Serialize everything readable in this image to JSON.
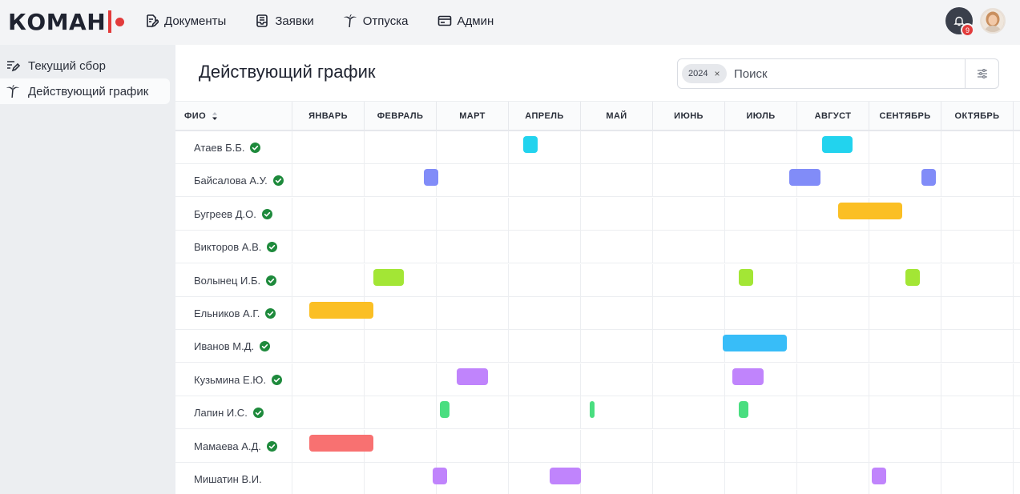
{
  "topbar": {
    "logo_text": "КОМАН",
    "brand_color": "#e23b3b",
    "nav": [
      {
        "label": "Документы",
        "icon": "document-edit-icon"
      },
      {
        "label": "Заявки",
        "icon": "inbox-icon"
      },
      {
        "label": "Отпуска",
        "icon": "palm-tree-icon"
      },
      {
        "label": "Админ",
        "icon": "admin-card-icon"
      }
    ],
    "notifications": {
      "icon": "bell-icon",
      "count": "9"
    },
    "avatar": "user-avatar"
  },
  "sidebar": {
    "items": [
      {
        "label": "Текущий сбор",
        "icon": "edit-list-icon",
        "active": false
      },
      {
        "label": "Действующий график",
        "icon": "palm-tree-icon",
        "active": true
      }
    ]
  },
  "main": {
    "title": "Действующий график",
    "search": {
      "chip": "2024",
      "placeholder": "Поиск",
      "value": "",
      "filter_icon": "sliders-icon"
    }
  },
  "table": {
    "name_header": "ФИО",
    "months": [
      "ЯНВАРЬ",
      "ФЕВРАЛЬ",
      "МАРТ",
      "АПРЕЛЬ",
      "МАЙ",
      "ИЮНЬ",
      "ИЮЛЬ",
      "АВГУСТ",
      "СЕНТЯБРЬ",
      "ОКТЯБРЬ"
    ],
    "rows": [
      {
        "name": "Атаев Б.Б.",
        "approved": true,
        "color": "#22d3ee",
        "vacations": [
          {
            "start": 3.21,
            "end": 3.41
          },
          {
            "start": 7.36,
            "end": 7.78
          }
        ]
      },
      {
        "name": "Байсалова А.У.",
        "approved": true,
        "color": "#818cf8",
        "vacations": [
          {
            "start": 1.83,
            "end": 2.03
          },
          {
            "start": 6.9,
            "end": 7.33
          },
          {
            "start": 8.73,
            "end": 8.93
          }
        ]
      },
      {
        "name": "Бугреев Д.О.",
        "approved": true,
        "color": "#fbbf24",
        "vacations": [
          {
            "start": 7.58,
            "end": 8.47
          }
        ]
      },
      {
        "name": "Викторов А.В.",
        "approved": true,
        "color": "#9ca3af",
        "vacations": []
      },
      {
        "name": "Волынец И.Б.",
        "approved": true,
        "color": "#a3e635",
        "vacations": [
          {
            "start": 1.13,
            "end": 1.56
          },
          {
            "start": 6.2,
            "end": 6.4
          },
          {
            "start": 8.51,
            "end": 8.71
          }
        ]
      },
      {
        "name": "Ельников А.Г.",
        "approved": true,
        "color": "#fbbf24",
        "vacations": [
          {
            "start": 0.24,
            "end": 1.13
          }
        ]
      },
      {
        "name": "Иванов М.Д.",
        "approved": true,
        "color": "#38bdf8",
        "vacations": [
          {
            "start": 5.98,
            "end": 6.87
          }
        ]
      },
      {
        "name": "Кузьмина Е.Ю.",
        "approved": true,
        "color": "#c084fc",
        "vacations": [
          {
            "start": 2.29,
            "end": 2.72
          },
          {
            "start": 6.11,
            "end": 6.54
          }
        ]
      },
      {
        "name": "Лапин И.С.",
        "approved": true,
        "color": "#4ade80",
        "vacations": [
          {
            "start": 2.06,
            "end": 2.19
          },
          {
            "start": 4.13,
            "end": 4.2
          },
          {
            "start": 6.2,
            "end": 6.33
          }
        ]
      },
      {
        "name": "Мамаева А.Д.",
        "approved": true,
        "color": "#f87171",
        "vacations": [
          {
            "start": 0.24,
            "end": 1.13
          }
        ]
      },
      {
        "name": "Мишатин В.И.",
        "approved": false,
        "color": "#c084fc",
        "vacations": [
          {
            "start": 1.96,
            "end": 2.16
          },
          {
            "start": 3.58,
            "end": 4.01
          },
          {
            "start": 8.04,
            "end": 8.24
          }
        ]
      }
    ]
  }
}
